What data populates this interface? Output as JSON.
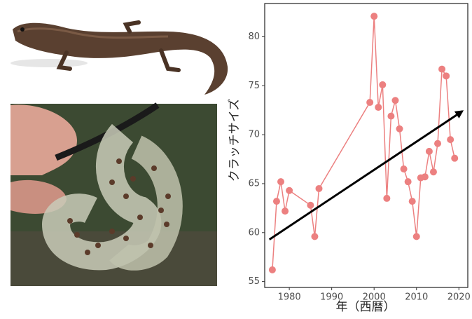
{
  "chart_data": {
    "type": "line",
    "x_label": "年（西暦）",
    "y_label": "クラッチサイズ",
    "x": [
      1976,
      1977,
      1978,
      1979,
      1980,
      1985,
      1986,
      1987,
      1999,
      2000,
      2001,
      2002,
      2003,
      2004,
      2005,
      2006,
      2007,
      2008,
      2009,
      2010,
      2011,
      2012,
      2013,
      2014,
      2015,
      2016,
      2017,
      2018,
      2019
    ],
    "series": [
      {
        "color": "#ec8080",
        "values": [
          56.2,
          63.2,
          65.2,
          62.2,
          64.3,
          62.8,
          59.6,
          64.5,
          73.3,
          82.1,
          72.8,
          75.1,
          63.5,
          71.9,
          73.5,
          70.6,
          66.5,
          65.2,
          63.2,
          59.6,
          65.6,
          65.7,
          68.3,
          66.2,
          69.1,
          76.7,
          76.0,
          69.5,
          67.6
        ]
      }
    ],
    "trend": {
      "color": "#000000",
      "x": [
        1975.3,
        2020.8
      ],
      "values": [
        59.3,
        72.4
      ]
    },
    "xlim": [
      1974.2,
      2022.1
    ],
    "ylim": [
      54.4,
      83.4
    ],
    "xticks": [
      1980,
      1990,
      2000,
      2010,
      2020
    ],
    "yticks": [
      55,
      60,
      65,
      70,
      75,
      80
    ]
  }
}
